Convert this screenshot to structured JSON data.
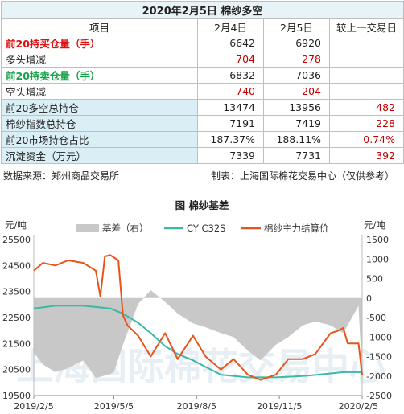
{
  "table": {
    "title": "2020年2月5日  棉纱多空",
    "headers": [
      "项目",
      "2月4日",
      "2月5日",
      "较上一交易日"
    ],
    "rows": [
      {
        "label": "前20持买仓量（手）",
        "v1": "6642",
        "v2": "6920",
        "chg": "",
        "style": "red-bold"
      },
      {
        "label": "多头增减",
        "v1": "704",
        "v2": "278",
        "chg": "",
        "style": "red-values"
      },
      {
        "label": "前20持卖仓量（手）",
        "v1": "6832",
        "v2": "7036",
        "chg": "",
        "style": "green-bold"
      },
      {
        "label": "空头增减",
        "v1": "740",
        "v2": "204",
        "chg": "",
        "style": "red-values"
      },
      {
        "label": "前20多空总持仓",
        "v1": "13474",
        "v2": "13956",
        "chg": "482",
        "style": "shade"
      },
      {
        "label": "棉纱指数总持仓",
        "v1": "7191",
        "v2": "7419",
        "chg": "228",
        "style": "shade"
      },
      {
        "label": "前20市场持仓占比",
        "v1": "187.37%",
        "v2": "188.11%",
        "chg": "0.74%",
        "style": "shade"
      },
      {
        "label": "沉淀资金（万元）",
        "v1": "7339",
        "v2": "7731",
        "chg": "392",
        "style": "shade"
      }
    ]
  },
  "footer": {
    "source": "数据来源：郑州商品交易所",
    "producer": "制表：上海国际棉花交易中心（仅供参考）"
  },
  "watermark": "上海国际棉花交易中心",
  "colors": {
    "basis_fill": "#c8c8c8",
    "cy": "#3cb9a6",
    "futures": "#e8541c",
    "red": "#c00000",
    "green": "#17a34a"
  },
  "chart_data": {
    "type": "line",
    "title": "图  棉纱基差",
    "y_left_label": "元/吨",
    "y_right_label": "元/吨",
    "y_left_lim": [
      19500,
      25500
    ],
    "y_left_ticks": [
      19500,
      20500,
      21500,
      22500,
      23500,
      24500,
      25500
    ],
    "y_right_lim": [
      -2500,
      1500
    ],
    "y_right_ticks": [
      -2500,
      -2000,
      -1500,
      -1000,
      -500,
      0,
      500,
      1000,
      1500
    ],
    "x_ticks": [
      "2019/2/5",
      "2019/5/5",
      "2019/8/5",
      "2019/11/5",
      "2020/2/5"
    ],
    "x_range": [
      "2019-02-05",
      "2020-02-05"
    ],
    "legend": [
      "基差（右）",
      "CY C32S",
      "棉纱主力结算价"
    ],
    "series": [
      {
        "name": "基差（右）",
        "axis": "right",
        "kind": "area",
        "x": [
          "2019-02-05",
          "2019-02-15",
          "2019-03-01",
          "2019-03-15",
          "2019-04-01",
          "2019-04-15",
          "2019-05-01",
          "2019-05-05",
          "2019-05-15",
          "2019-06-01",
          "2019-06-15",
          "2019-07-01",
          "2019-07-15",
          "2019-08-01",
          "2019-08-15",
          "2019-09-01",
          "2019-09-15",
          "2019-10-01",
          "2019-10-15",
          "2019-11-01",
          "2019-11-15",
          "2019-12-01",
          "2019-12-15",
          "2020-01-01",
          "2020-01-15",
          "2020-02-01",
          "2020-02-05"
        ],
        "values": [
          -1400,
          -1700,
          -1900,
          -1800,
          -1600,
          -2050,
          -1950,
          -1900,
          -1200,
          -150,
          200,
          -100,
          -400,
          -650,
          -750,
          -900,
          -1000,
          -1350,
          -1600,
          -1200,
          -1000,
          -700,
          -600,
          -700,
          -900,
          -200,
          -2000
        ]
      },
      {
        "name": "CY C32S",
        "axis": "left",
        "x": [
          "2019-02-05",
          "2019-03-01",
          "2019-04-01",
          "2019-05-01",
          "2019-05-15",
          "2019-06-01",
          "2019-06-15",
          "2019-07-01",
          "2019-07-15",
          "2019-08-01",
          "2019-08-15",
          "2019-09-01",
          "2019-10-01",
          "2019-11-01",
          "2019-12-01",
          "2020-01-01",
          "2020-01-15",
          "2020-02-05"
        ],
        "values": [
          22850,
          22950,
          22950,
          22850,
          22650,
          22300,
          21900,
          21400,
          21100,
          20850,
          20600,
          20300,
          20200,
          20200,
          20250,
          20350,
          20400,
          20400
        ]
      },
      {
        "name": "棉纱主力结算价",
        "axis": "left",
        "x": [
          "2019-02-05",
          "2019-02-15",
          "2019-03-01",
          "2019-03-15",
          "2019-04-01",
          "2019-04-15",
          "2019-04-20",
          "2019-04-25",
          "2019-05-01",
          "2019-05-10",
          "2019-05-15",
          "2019-05-20",
          "2019-06-01",
          "2019-06-15",
          "2019-07-01",
          "2019-07-15",
          "2019-08-01",
          "2019-08-15",
          "2019-09-01",
          "2019-09-15",
          "2019-10-01",
          "2019-10-15",
          "2019-11-01",
          "2019-11-15",
          "2019-12-01",
          "2019-12-15",
          "2020-01-01",
          "2020-01-10",
          "2020-01-15",
          "2020-01-20",
          "2020-02-01",
          "2020-02-05"
        ],
        "values": [
          24300,
          24600,
          24500,
          24700,
          24600,
          24300,
          23300,
          24850,
          24900,
          24700,
          22600,
          22200,
          21800,
          21000,
          21900,
          20900,
          21800,
          21000,
          20500,
          20900,
          20300,
          20100,
          20300,
          20900,
          20900,
          21100,
          21900,
          22000,
          22100,
          21500,
          21500,
          20300
        ]
      }
    ]
  }
}
